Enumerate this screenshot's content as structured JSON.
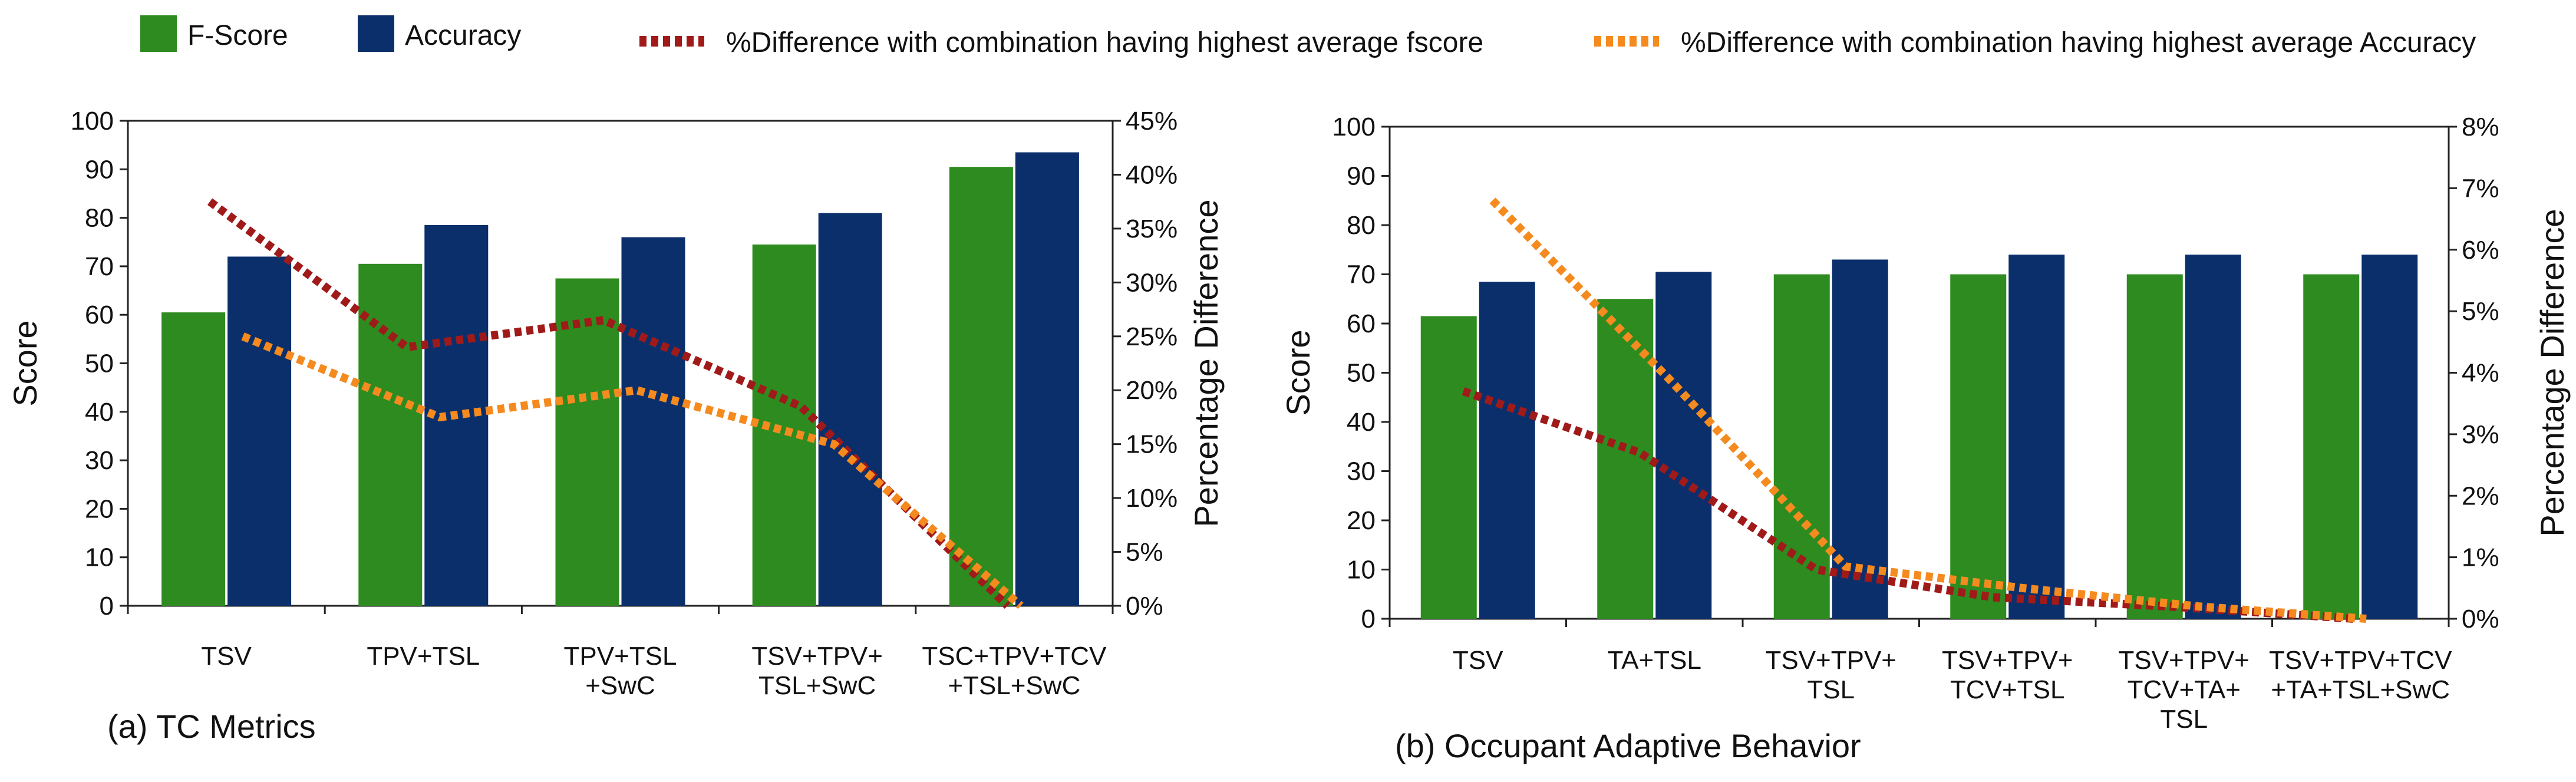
{
  "legend": [
    {
      "label": "F-Score",
      "color": "#2e8b1f",
      "kind": "box"
    },
    {
      "label": "Accuracy",
      "color": "#0b2f6b",
      "kind": "box"
    },
    {
      "label": "%Difference with combination having highest average fscore",
      "color": "#a01a1a",
      "kind": "dash"
    },
    {
      "label": "%Difference with combination having highest average Accuracy",
      "color": "#f58a1f",
      "kind": "dash"
    }
  ],
  "colors": {
    "fscore": "#2e8b1f",
    "accuracy": "#0b2f6b",
    "diff_fscore": "#a01a1a",
    "diff_accuracy": "#f58a1f"
  },
  "chart_data": [
    {
      "type": "bar",
      "title": "(a) TC Metrics",
      "ylabel": "Score",
      "y2label": "Percentage Difference",
      "ylim": [
        0,
        100
      ],
      "y2lim": [
        0,
        45
      ],
      "yticks": [
        "0",
        "10",
        "20",
        "30",
        "40",
        "50",
        "60",
        "70",
        "80",
        "90",
        "100"
      ],
      "y2ticks": [
        "0%",
        "5%",
        "10%",
        "15%",
        "20%",
        "25%",
        "30%",
        "35%",
        "40%",
        "45%"
      ],
      "categories": [
        [
          "TSV"
        ],
        [
          "TPV+TSL"
        ],
        [
          "TPV+TSL",
          "+SwC"
        ],
        [
          "TSV+TPV+",
          "TSL+SwC"
        ],
        [
          "TSC+TPV+TCV",
          "+TSL+SwC"
        ]
      ],
      "series": [
        {
          "name": "F-Score",
          "kind": "bar",
          "values": [
            60.5,
            70.5,
            67.5,
            74.5,
            90.5
          ]
        },
        {
          "name": "Accuracy",
          "kind": "bar",
          "values": [
            72,
            78.5,
            76,
            81,
            93.5
          ]
        },
        {
          "name": "%Difference with combination having highest average fscore",
          "kind": "line",
          "values": [
            37.5,
            24,
            26.5,
            18.5,
            0
          ]
        },
        {
          "name": "%Difference with combination having highest average Accuracy",
          "kind": "line",
          "values": [
            25,
            17.5,
            20,
            15,
            0
          ]
        }
      ]
    },
    {
      "type": "bar",
      "title": "(b) Occupant Adaptive Behavior",
      "ylabel": "Score",
      "y2label": "Percentage Difference",
      "ylim": [
        0,
        100
      ],
      "y2lim": [
        0,
        8
      ],
      "yticks": [
        "0",
        "10",
        "20",
        "30",
        "40",
        "50",
        "60",
        "70",
        "80",
        "90",
        "100"
      ],
      "y2ticks": [
        "0%",
        "1%",
        "2%",
        "3%",
        "4%",
        "5%",
        "6%",
        "7%",
        "8%"
      ],
      "categories": [
        [
          "TSV"
        ],
        [
          "TA+TSL"
        ],
        [
          "TSV+TPV+",
          "TSL"
        ],
        [
          "TSV+TPV+",
          "TCV+TSL"
        ],
        [
          "TSV+TPV+",
          "TCV+TA+",
          "TSL"
        ],
        [
          "TSV+TPV+TCV",
          "+TA+TSL+SwC"
        ]
      ],
      "series": [
        {
          "name": "F-Score",
          "kind": "bar",
          "values": [
            61.5,
            65,
            70,
            70,
            70,
            70
          ]
        },
        {
          "name": "Accuracy",
          "kind": "bar",
          "values": [
            68.5,
            70.5,
            73,
            74,
            74,
            74
          ]
        },
        {
          "name": "%Difference with combination having highest average fscore",
          "kind": "line",
          "values": [
            3.7,
            2.7,
            0.8,
            0.35,
            0.2,
            0
          ]
        },
        {
          "name": "%Difference with combination having highest average Accuracy",
          "kind": "line",
          "values": [
            6.8,
            3.9,
            0.85,
            0.5,
            0.2,
            0
          ]
        }
      ]
    }
  ]
}
